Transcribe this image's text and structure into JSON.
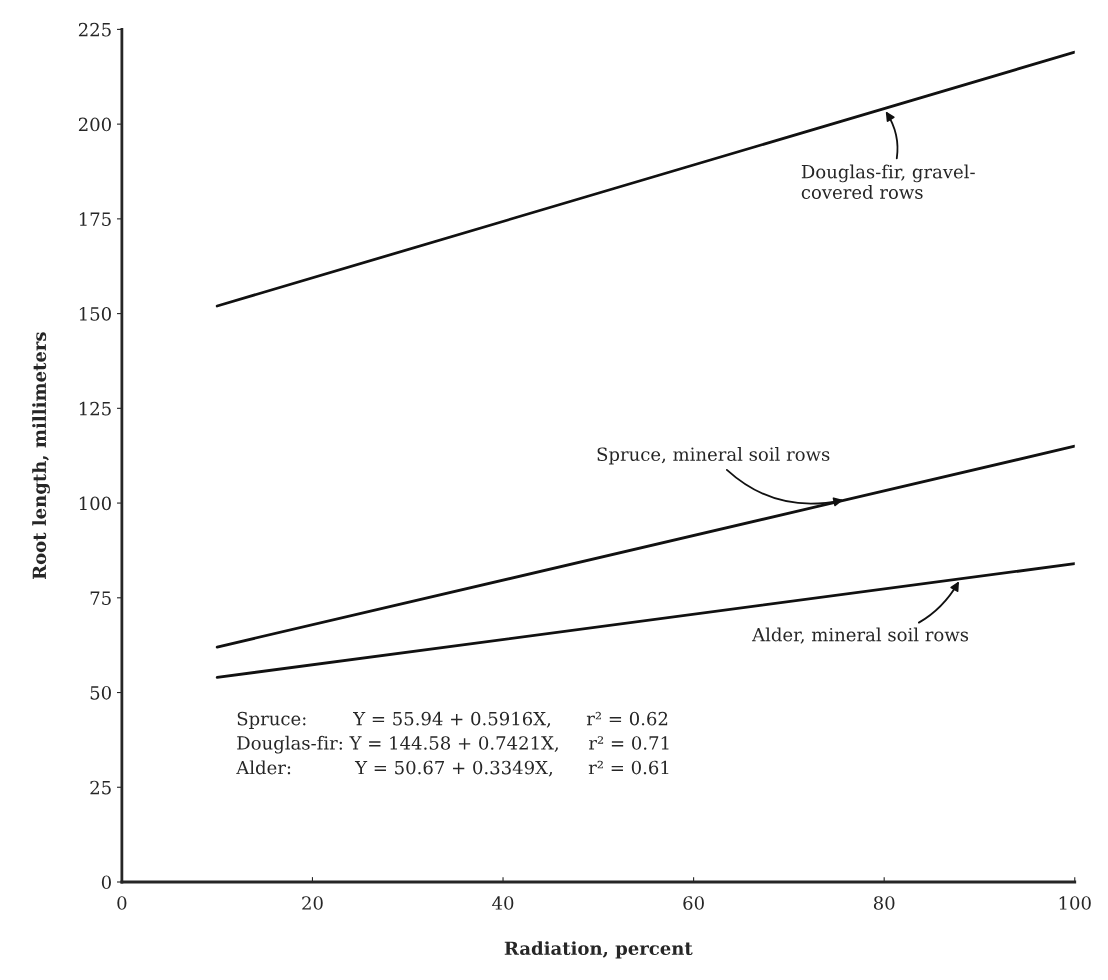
{
  "chart_data": {
    "type": "line",
    "x": [
      10,
      100
    ],
    "xlabel": "Radiation, percent",
    "ylabel": "Root length, millimeters",
    "series": [
      {
        "color": "#111111",
        "values": [
          152,
          219
        ]
      },
      {
        "color": "#111111",
        "values": [
          62,
          115
        ]
      },
      {
        "color": "#111111",
        "values": [
          54,
          84
        ]
      }
    ],
    "annotations": [
      {
        "text": "Douglas-fir, gravel-\ncovered rows",
        "x": 80,
        "y": 204
      },
      {
        "text": "Spruce, mineral soil rows",
        "x": 76,
        "y": 101
      },
      {
        "text": "Alder, mineral soil rows",
        "x": 88,
        "y": 80
      },
      "Spruce:        Y = 55.94 + 0.5916X,      r² = 0.62\nDouglas-fir: Y = 144.58 + 0.7421X,     r² = 0.71\nAlder:           Y = 50.67 + 0.3349X,      r² = 0.61"
    ],
    "xlim": [
      0,
      100
    ],
    "ylim": [
      0,
      225
    ],
    "xticks": [
      0,
      20,
      40,
      60,
      80,
      100
    ],
    "yticks": [
      0,
      25,
      50,
      75,
      100,
      125,
      150,
      175,
      200,
      225
    ],
    "grid": false,
    "legend": false,
    "marker": "none",
    "line_style": "solid"
  }
}
